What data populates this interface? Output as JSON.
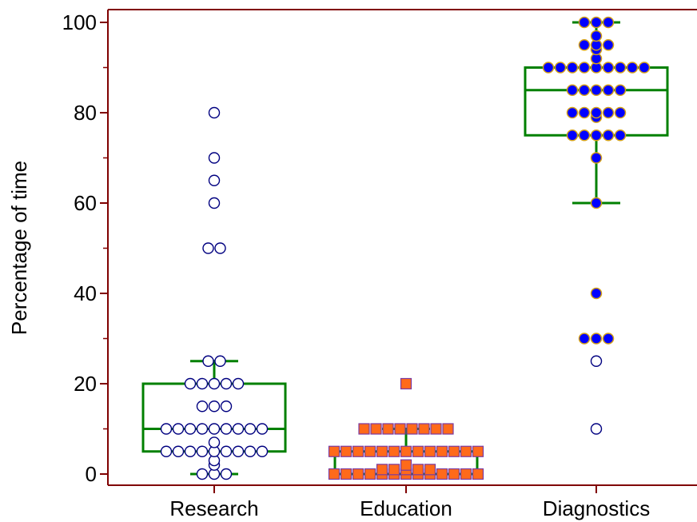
{
  "chart_data": {
    "type": "box-dot",
    "title": "",
    "xlabel": "",
    "ylabel": "Percentage of time",
    "ylim": [
      0,
      100
    ],
    "yticks": [
      0,
      20,
      40,
      60,
      80,
      100
    ],
    "categories": [
      "Research",
      "Education",
      "Diagnostics"
    ],
    "grid": false,
    "colors": {
      "axis": "#800000",
      "box": "#008000",
      "research_marker_fill": "#ffffff",
      "research_marker_edge": "#000080",
      "education_marker_fill": "#ff6a1a",
      "education_marker_edge": "#7a3aa0",
      "diagnostics_marker_fill": "#0000ff",
      "diagnostics_marker_edge": "#d4a017"
    },
    "series": [
      {
        "category": "Research",
        "marker": "open-circle",
        "box": {
          "whisker_low": 0,
          "q1": 5,
          "median": 10,
          "q3": 20,
          "whisker_high": 25
        },
        "values": [
          0,
          0,
          0,
          2,
          3,
          5,
          5,
          5,
          5,
          5,
          5,
          5,
          5,
          5,
          7,
          10,
          10,
          10,
          10,
          10,
          10,
          10,
          10,
          10,
          15,
          15,
          15,
          20,
          20,
          20,
          20,
          20,
          25,
          25
        ],
        "outliers": [
          50,
          50,
          60,
          65,
          70,
          80
        ]
      },
      {
        "category": "Education",
        "marker": "square",
        "box": {
          "whisker_low": 0,
          "q1": 0,
          "median": 0,
          "q3": 5,
          "whisker_high": 10
        },
        "values": [
          0,
          0,
          0,
          0,
          0,
          0,
          0,
          0,
          0,
          0,
          0,
          0,
          0,
          1,
          1,
          1,
          1,
          1,
          2,
          5,
          5,
          5,
          5,
          5,
          5,
          5,
          5,
          5,
          5,
          5,
          5,
          5,
          10,
          10,
          10,
          10,
          10,
          10,
          10,
          10
        ],
        "outliers": [
          20
        ]
      },
      {
        "category": "Diagnostics",
        "marker": "filled-circle",
        "box": {
          "whisker_low": 60,
          "q1": 75,
          "median": 85,
          "q3": 90,
          "whisker_high": 100
        },
        "values": [
          60,
          70,
          75,
          75,
          75,
          75,
          75,
          79,
          80,
          80,
          80,
          80,
          80,
          85,
          85,
          85,
          85,
          85,
          90,
          90,
          90,
          90,
          90,
          90,
          90,
          90,
          90,
          92,
          94,
          95,
          95,
          95,
          97,
          100,
          100,
          100
        ],
        "outliers_filled": [
          30,
          30,
          30,
          40
        ],
        "outliers_open": [
          10,
          25
        ]
      }
    ]
  }
}
